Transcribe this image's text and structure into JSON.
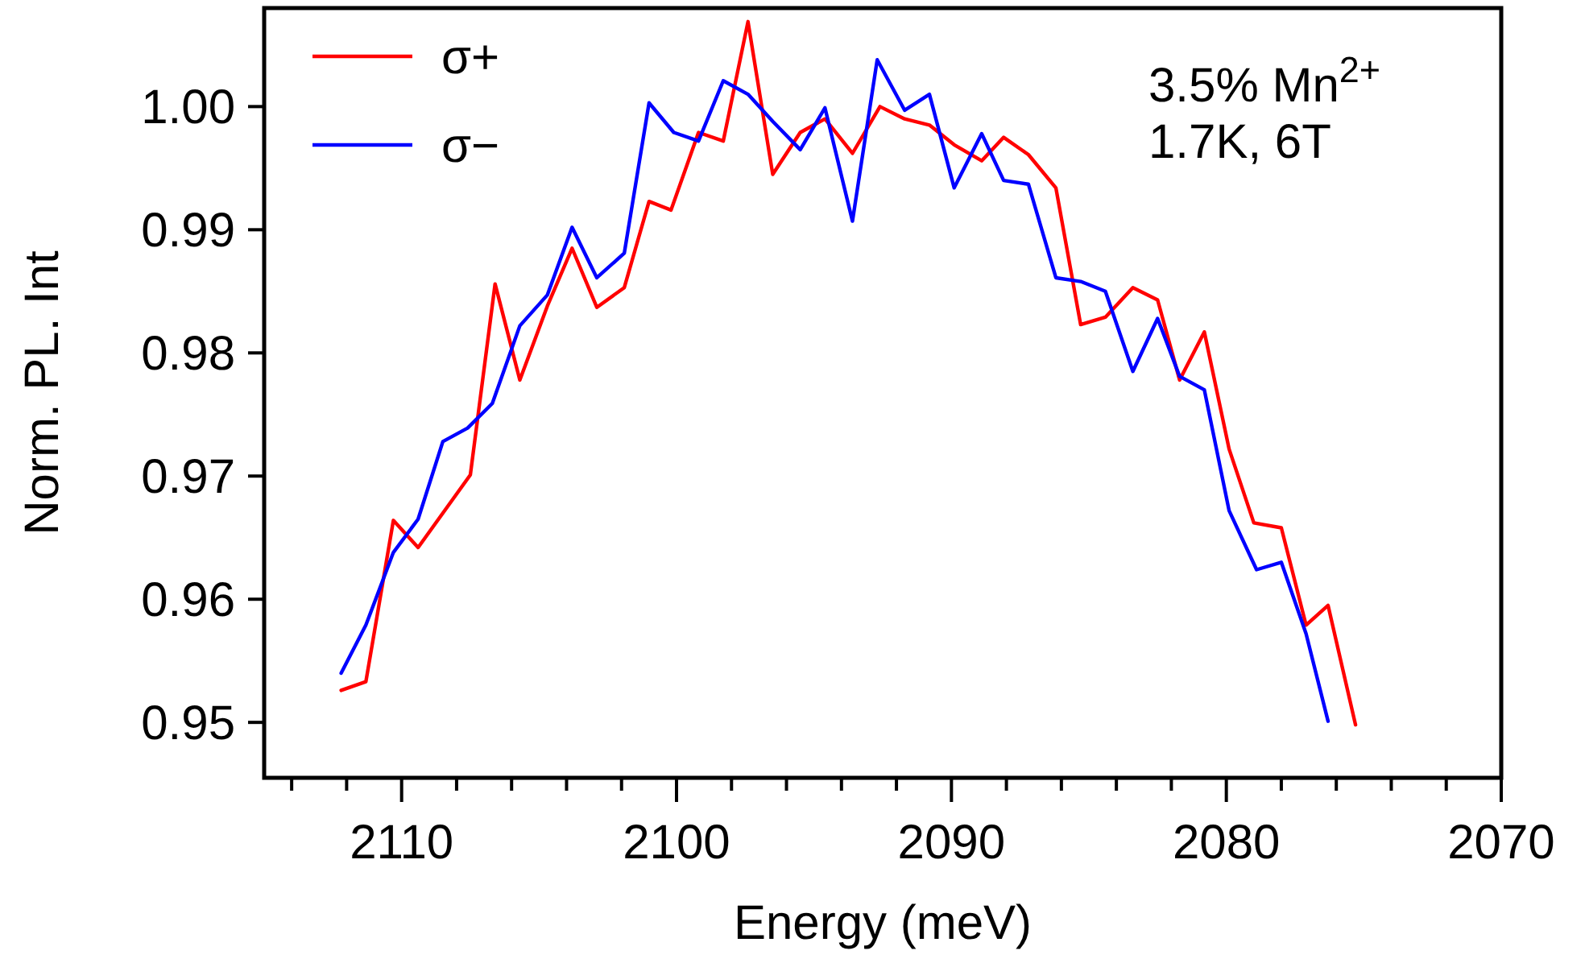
{
  "chart_data": {
    "type": "line",
    "xlabel": "Energy (meV)",
    "ylabel": "Norm. PL. Int",
    "xlim": [
      2115,
      2070
    ],
    "xticks": [
      {
        "value": 2114,
        "label": null
      },
      {
        "value": 2112,
        "label": null
      },
      2110,
      {
        "value": 2108,
        "label": null
      },
      {
        "value": 2106,
        "label": null
      },
      {
        "value": 2104,
        "label": null
      },
      {
        "value": 2102,
        "label": null
      },
      2100,
      {
        "value": 2098,
        "label": null
      },
      {
        "value": 2096,
        "label": null
      },
      {
        "value": 2094,
        "label": null
      },
      {
        "value": 2092,
        "label": null
      },
      2090,
      {
        "value": 2088,
        "label": null
      },
      {
        "value": 2086,
        "label": null
      },
      {
        "value": 2084,
        "label": null
      },
      {
        "value": 2082,
        "label": null
      },
      2080,
      {
        "value": 2078,
        "label": null
      },
      {
        "value": 2076,
        "label": null
      },
      {
        "value": 2074,
        "label": null
      },
      {
        "value": 2072,
        "label": null
      },
      2070
    ],
    "ylim": [
      0.9455,
      1.008
    ],
    "yticks": [
      {
        "value": 0.95,
        "label": "0.95"
      },
      {
        "value": 0.96,
        "label": "0.96"
      },
      {
        "value": 0.97,
        "label": "0.97"
      },
      {
        "value": 0.98,
        "label": "0.98"
      },
      {
        "value": 0.99,
        "label": "0.99"
      },
      {
        "value": 1.0,
        "label": "1.00"
      }
    ],
    "grid": false,
    "legend": "top left",
    "marker": "none",
    "line_style": "solid",
    "annotations": [
      "3.5% Mn$^{2+}$",
      "1.7K, 6T"
    ],
    "series": [
      {
        "name": "σ+",
        "color": "#ff0000",
        "x": [
          2112.2,
          2111.3,
          2110.3,
          2109.4,
          2107.5,
          2106.6,
          2105.7,
          2104.7,
          2103.8,
          2102.9,
          2101.9,
          2101.0,
          2100.2,
          2099.2,
          2098.3,
          2097.4,
          2096.5,
          2095.5,
          2094.6,
          2093.6,
          2092.6,
          2091.7,
          2090.8,
          2089.9,
          2088.9,
          2088.1,
          2087.2,
          2086.2,
          2085.3,
          2084.4,
          2083.4,
          2082.5,
          2081.7,
          2080.8,
          2079.9,
          2079.0,
          2078.0,
          2077.1,
          2076.3,
          2075.3
        ],
        "values": [
          0.9526,
          0.9533,
          0.9664,
          0.9642,
          0.9701,
          0.9856,
          0.9778,
          0.9838,
          0.9885,
          0.9837,
          0.9853,
          0.9923,
          0.9916,
          0.9979,
          0.9972,
          1.0069,
          0.9945,
          0.9979,
          0.999,
          0.9962,
          1.0,
          0.999,
          0.9985,
          0.9969,
          0.9956,
          0.9975,
          0.9961,
          0.9934,
          0.9823,
          0.9829,
          0.9853,
          0.9843,
          0.9778,
          0.9817,
          0.9722,
          0.9662,
          0.9658,
          0.9579,
          0.9595,
          0.9498
        ]
      },
      {
        "name": "σ−",
        "color": "#0000ff",
        "x": [
          2112.2,
          2111.3,
          2110.3,
          2109.4,
          2108.5,
          2107.6,
          2106.7,
          2105.7,
          2104.7,
          2103.8,
          2102.9,
          2101.9,
          2101.0,
          2100.1,
          2099.2,
          2098.3,
          2097.4,
          2096.5,
          2095.5,
          2094.6,
          2093.6,
          2092.7,
          2091.7,
          2090.8,
          2089.9,
          2088.9,
          2088.1,
          2087.2,
          2086.2,
          2085.3,
          2084.4,
          2083.4,
          2082.5,
          2081.7,
          2080.8,
          2079.9,
          2078.9,
          2078.0,
          2077.1,
          2076.3
        ],
        "values": [
          0.954,
          0.9579,
          0.9638,
          0.9665,
          0.9728,
          0.9739,
          0.9759,
          0.9822,
          0.9847,
          0.9902,
          0.9861,
          0.9881,
          1.0003,
          0.9979,
          0.9972,
          1.0021,
          1.001,
          0.9988,
          0.9965,
          0.9999,
          0.9907,
          1.0038,
          0.9997,
          1.001,
          0.9934,
          0.9978,
          0.994,
          0.9937,
          0.9861,
          0.9858,
          0.985,
          0.9785,
          0.9828,
          0.9781,
          0.977,
          0.9672,
          0.9624,
          0.963,
          0.9572,
          0.9501
        ]
      }
    ]
  }
}
